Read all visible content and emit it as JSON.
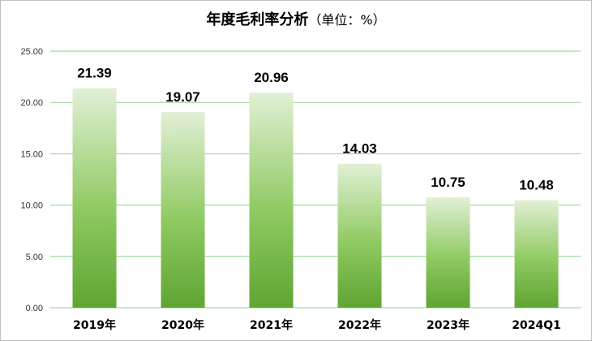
{
  "title": {
    "main": "年度毛利率分析",
    "sub": "（单位：%）"
  },
  "colors": {
    "bar_top": "#e2f0d6",
    "bar_bottom": "#5fa532",
    "grid": "#8fcf8f"
  },
  "chart_data": {
    "type": "bar",
    "title": "年度毛利率分析（单位：%）",
    "categories": [
      "2019年",
      "2020年",
      "2021年",
      "2022年",
      "2023年",
      "2024Q1"
    ],
    "values": [
      21.39,
      19.07,
      20.96,
      14.03,
      10.75,
      10.48
    ],
    "data_labels": [
      "21.39",
      "19.07",
      "20.96",
      "14.03",
      "10.75",
      "10.48"
    ],
    "y_ticks": [
      "0.00",
      "5.00",
      "10.00",
      "15.00",
      "20.00",
      "25.00"
    ],
    "ylim": [
      0,
      25
    ],
    "xlabel": "",
    "ylabel": "",
    "grid": true,
    "legend": "none"
  }
}
